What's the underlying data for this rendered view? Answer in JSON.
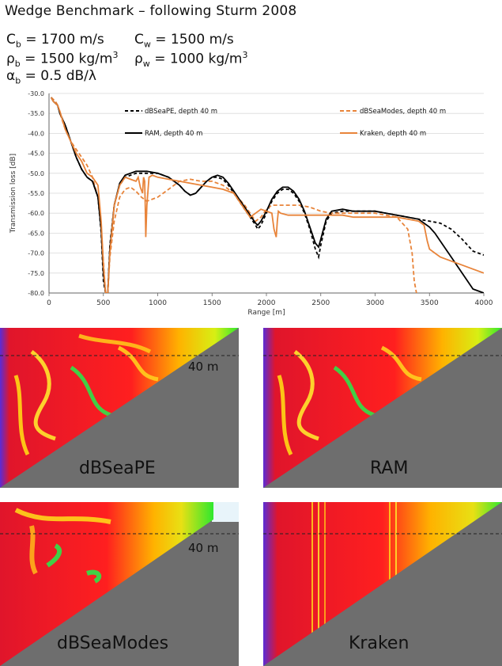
{
  "title": "Wedge Benchmark – following Sturm 2008",
  "params": {
    "cb_sym": "C",
    "cb_sub": "b",
    "cb_val": " = 1700 m/s",
    "cw_sym": "C",
    "cw_sub": "w",
    "cw_val": " = 1500 m/s",
    "rb_sym": "ρ",
    "rb_sub": "b",
    "rb_val": " = 1500 kg/m",
    "rb_sup": "3",
    "rw_sym": "ρ",
    "rw_sub": "w",
    "rw_val": " = 1000 kg/m",
    "rw_sup": "3",
    "ab_sym": "α",
    "ab_sub": "b",
    "ab_val": " = 0.5 dB/λ"
  },
  "colors": {
    "black": "#000000",
    "orange": "#e8843a",
    "grid": "#d9d9d9"
  },
  "chart_data": {
    "type": "line",
    "xlabel": "Range [m]",
    "ylabel": "Transmission loss [dB]",
    "xlim": [
      0,
      4000
    ],
    "ylim": [
      -80,
      -30
    ],
    "xticks": [
      0,
      500,
      1000,
      1500,
      2000,
      2500,
      3000,
      3500,
      4000
    ],
    "yticks": [
      -30,
      -35,
      -40,
      -45,
      -50,
      -55,
      -60,
      -65,
      -70,
      -75,
      -80
    ],
    "ytick_labels": [
      "-30.0",
      "-35.0",
      "-40.0",
      "-45.0",
      "-50.0",
      "-55.0",
      "-60.0",
      "-65.0",
      "-70.0",
      "-75.0",
      "-80.0"
    ],
    "series": [
      {
        "name": "dBSeaPE, depth 40 m",
        "color": "#000000",
        "dash": "4,3",
        "x": [
          20,
          40,
          60,
          80,
          100,
          150,
          200,
          250,
          300,
          350,
          400,
          450,
          480,
          500,
          520,
          540,
          560,
          600,
          650,
          700,
          800,
          900,
          1000,
          1100,
          1200,
          1250,
          1300,
          1350,
          1400,
          1450,
          1500,
          1550,
          1600,
          1650,
          1700,
          1750,
          1800,
          1850,
          1900,
          1920,
          1950,
          2000,
          2050,
          2100,
          2150,
          2200,
          2250,
          2300,
          2350,
          2400,
          2450,
          2480,
          2500,
          2550,
          2600,
          2700,
          2800,
          2900,
          3000,
          3100,
          3200,
          3300,
          3400,
          3500,
          3600,
          3700,
          3800,
          3900,
          4000
        ],
        "y": [
          -31,
          -32,
          -32.5,
          -33,
          -35,
          -38,
          -42,
          -46,
          -49,
          -51,
          -52,
          -56,
          -65,
          -77,
          -80,
          -80,
          -68,
          -58,
          -53,
          -51,
          -50,
          -50,
          -50,
          -51,
          -53,
          -54.5,
          -55.5,
          -55,
          -53.5,
          -52,
          -51,
          -51,
          -51.5,
          -53,
          -55,
          -57,
          -59,
          -61,
          -63,
          -64,
          -63,
          -60,
          -57,
          -55,
          -54,
          -54,
          -55,
          -57,
          -60,
          -64,
          -69,
          -71,
          -68,
          -62,
          -60,
          -59.5,
          -59.5,
          -59.5,
          -59.5,
          -60,
          -60.5,
          -61,
          -61.5,
          -62,
          -62.5,
          -64,
          -66.5,
          -69.5,
          -70.5
        ]
      },
      {
        "name": "dBSeaModes, depth 40 m",
        "color": "#e8843a",
        "dash": "5,3",
        "x": [
          20,
          40,
          60,
          80,
          100,
          150,
          200,
          250,
          300,
          350,
          400,
          450,
          480,
          500,
          520,
          540,
          560,
          600,
          650,
          700,
          750,
          800,
          850,
          900,
          1000,
          1100,
          1200,
          1300,
          1400,
          1500,
          1600,
          1700,
          1800,
          1850,
          1900,
          1950,
          2000,
          2050,
          2100,
          2150,
          2200,
          2300,
          2400,
          2500,
          2600,
          2700,
          2800,
          2900,
          3000,
          3100,
          3200,
          3300,
          3340,
          3360,
          3380
        ],
        "y": [
          -31,
          -31.5,
          -32,
          -33,
          -35,
          -39,
          -42,
          -44,
          -46,
          -48,
          -51,
          -56,
          -64,
          -72,
          -80,
          -80,
          -71,
          -62,
          -56,
          -54,
          -53.5,
          -54.5,
          -56,
          -57,
          -56,
          -54,
          -52,
          -51.5,
          -52,
          -52,
          -53,
          -55,
          -58,
          -60,
          -62,
          -61,
          -59,
          -58,
          -58,
          -58,
          -58,
          -58,
          -58.5,
          -59.5,
          -60,
          -60,
          -60,
          -60,
          -60,
          -60.5,
          -61,
          -64,
          -70,
          -77,
          -80
        ]
      },
      {
        "name": "RAM, depth 40 m",
        "color": "#000000",
        "dash": "",
        "x": [
          20,
          40,
          60,
          80,
          100,
          150,
          200,
          250,
          300,
          350,
          400,
          450,
          480,
          500,
          520,
          540,
          560,
          600,
          650,
          700,
          800,
          900,
          1000,
          1100,
          1200,
          1250,
          1300,
          1350,
          1400,
          1450,
          1500,
          1550,
          1600,
          1650,
          1700,
          1750,
          1800,
          1850,
          1900,
          1920,
          1950,
          2000,
          2050,
          2100,
          2150,
          2200,
          2250,
          2300,
          2350,
          2400,
          2450,
          2480,
          2500,
          2550,
          2600,
          2700,
          2800,
          2900,
          3000,
          3100,
          3200,
          3300,
          3400,
          3450,
          3500,
          3550,
          3600,
          3700,
          3800,
          3900,
          4000
        ],
        "y": [
          -31,
          -32,
          -32.5,
          -33,
          -35,
          -38,
          -42,
          -46,
          -49,
          -51,
          -52,
          -56,
          -64,
          -75,
          -80,
          -80,
          -69,
          -58,
          -52.5,
          -50.5,
          -49.5,
          -49.5,
          -50,
          -51,
          -53,
          -54.5,
          -55.5,
          -55,
          -53.5,
          -52,
          -51,
          -50.5,
          -51,
          -52.5,
          -54.5,
          -56.5,
          -58.5,
          -60.5,
          -62.5,
          -63,
          -62,
          -59.5,
          -56.5,
          -54.5,
          -53.5,
          -53.5,
          -54.5,
          -56.5,
          -59.5,
          -63.5,
          -67.5,
          -68.5,
          -66.5,
          -61.5,
          -59.5,
          -59,
          -59.5,
          -59.5,
          -59.5,
          -60,
          -60.5,
          -61,
          -61.5,
          -62.5,
          -63.5,
          -65,
          -67,
          -71,
          -75,
          -79,
          -80
        ]
      },
      {
        "name": "Kraken, depth 40 m",
        "color": "#e8843a",
        "dash": "",
        "x": [
          20,
          40,
          60,
          80,
          100,
          150,
          200,
          250,
          300,
          350,
          400,
          450,
          480,
          500,
          520,
          540,
          560,
          600,
          650,
          700,
          750,
          800,
          820,
          840,
          860,
          870,
          880,
          885,
          890,
          900,
          920,
          950,
          1000,
          1100,
          1200,
          1300,
          1400,
          1500,
          1600,
          1700,
          1800,
          1850,
          1900,
          1950,
          2000,
          2050,
          2070,
          2090,
          2100,
          2110,
          2130,
          2200,
          2300,
          2400,
          2500,
          2600,
          2700,
          2800,
          2900,
          3000,
          3100,
          3200,
          3300,
          3400,
          3450,
          3480,
          3500,
          3550,
          3600,
          3700,
          3800,
          3900,
          4000
        ],
        "y": [
          -31,
          -32,
          -32.5,
          -33,
          -34.5,
          -39,
          -42,
          -45,
          -47,
          -50,
          -51,
          -53,
          -62,
          -73,
          -80,
          -80,
          -70,
          -58,
          -53,
          -51,
          -51.5,
          -52,
          -51,
          -53.5,
          -55,
          -51,
          -52,
          -58,
          -66,
          -58,
          -51,
          -50.5,
          -51,
          -51.5,
          -52,
          -52.5,
          -53,
          -53.5,
          -54,
          -55,
          -59,
          -61,
          -60,
          -59,
          -59.5,
          -60,
          -64,
          -66,
          -62,
          -59.5,
          -60,
          -60.5,
          -60.5,
          -60.5,
          -60.5,
          -60.5,
          -60.5,
          -61,
          -61,
          -61,
          -61,
          -61,
          -61.5,
          -62,
          -63,
          -67,
          -69,
          -70,
          -71,
          -72,
          -73,
          -74,
          -75
        ]
      }
    ]
  },
  "panels": [
    {
      "label": "dBSeaPE",
      "depth": "40 m"
    },
    {
      "label": "RAM"
    },
    {
      "label": "dBSeaModes",
      "depth": "40 m"
    },
    {
      "label": "Kraken"
    }
  ]
}
